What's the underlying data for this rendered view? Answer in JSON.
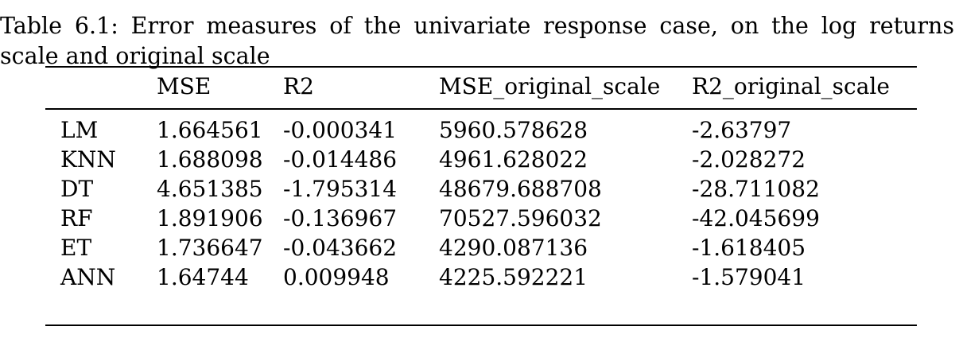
{
  "caption": {
    "line1": "Table 6.1: Error measures of the univariate response case, on the log returns",
    "line2": "scale and original scale"
  },
  "table": {
    "headers": [
      "",
      "MSE",
      "R2",
      "MSE_original_scale",
      "R2_original_scale"
    ],
    "header_display": [
      "",
      "MSE",
      "R2",
      "MSE original scale",
      "R2 original scale"
    ],
    "rows": [
      [
        "LM",
        "1.664561",
        "-0.000341",
        "5960.578628",
        "-2.63797"
      ],
      [
        "KNN",
        "1.688098",
        "-0.014486",
        "4961.628022",
        "-2.028272"
      ],
      [
        "DT",
        "4.651385",
        "-1.795314",
        "48679.688708",
        "-28.711082"
      ],
      [
        "RF",
        "1.891906",
        "-0.136967",
        "70527.596032",
        "-42.045699"
      ],
      [
        "ET",
        "1.736647",
        "-0.043662",
        "4290.087136",
        "-1.618405"
      ],
      [
        "ANN",
        "1.64744",
        "0.009948",
        "4225.592221",
        "-1.579041"
      ]
    ]
  }
}
